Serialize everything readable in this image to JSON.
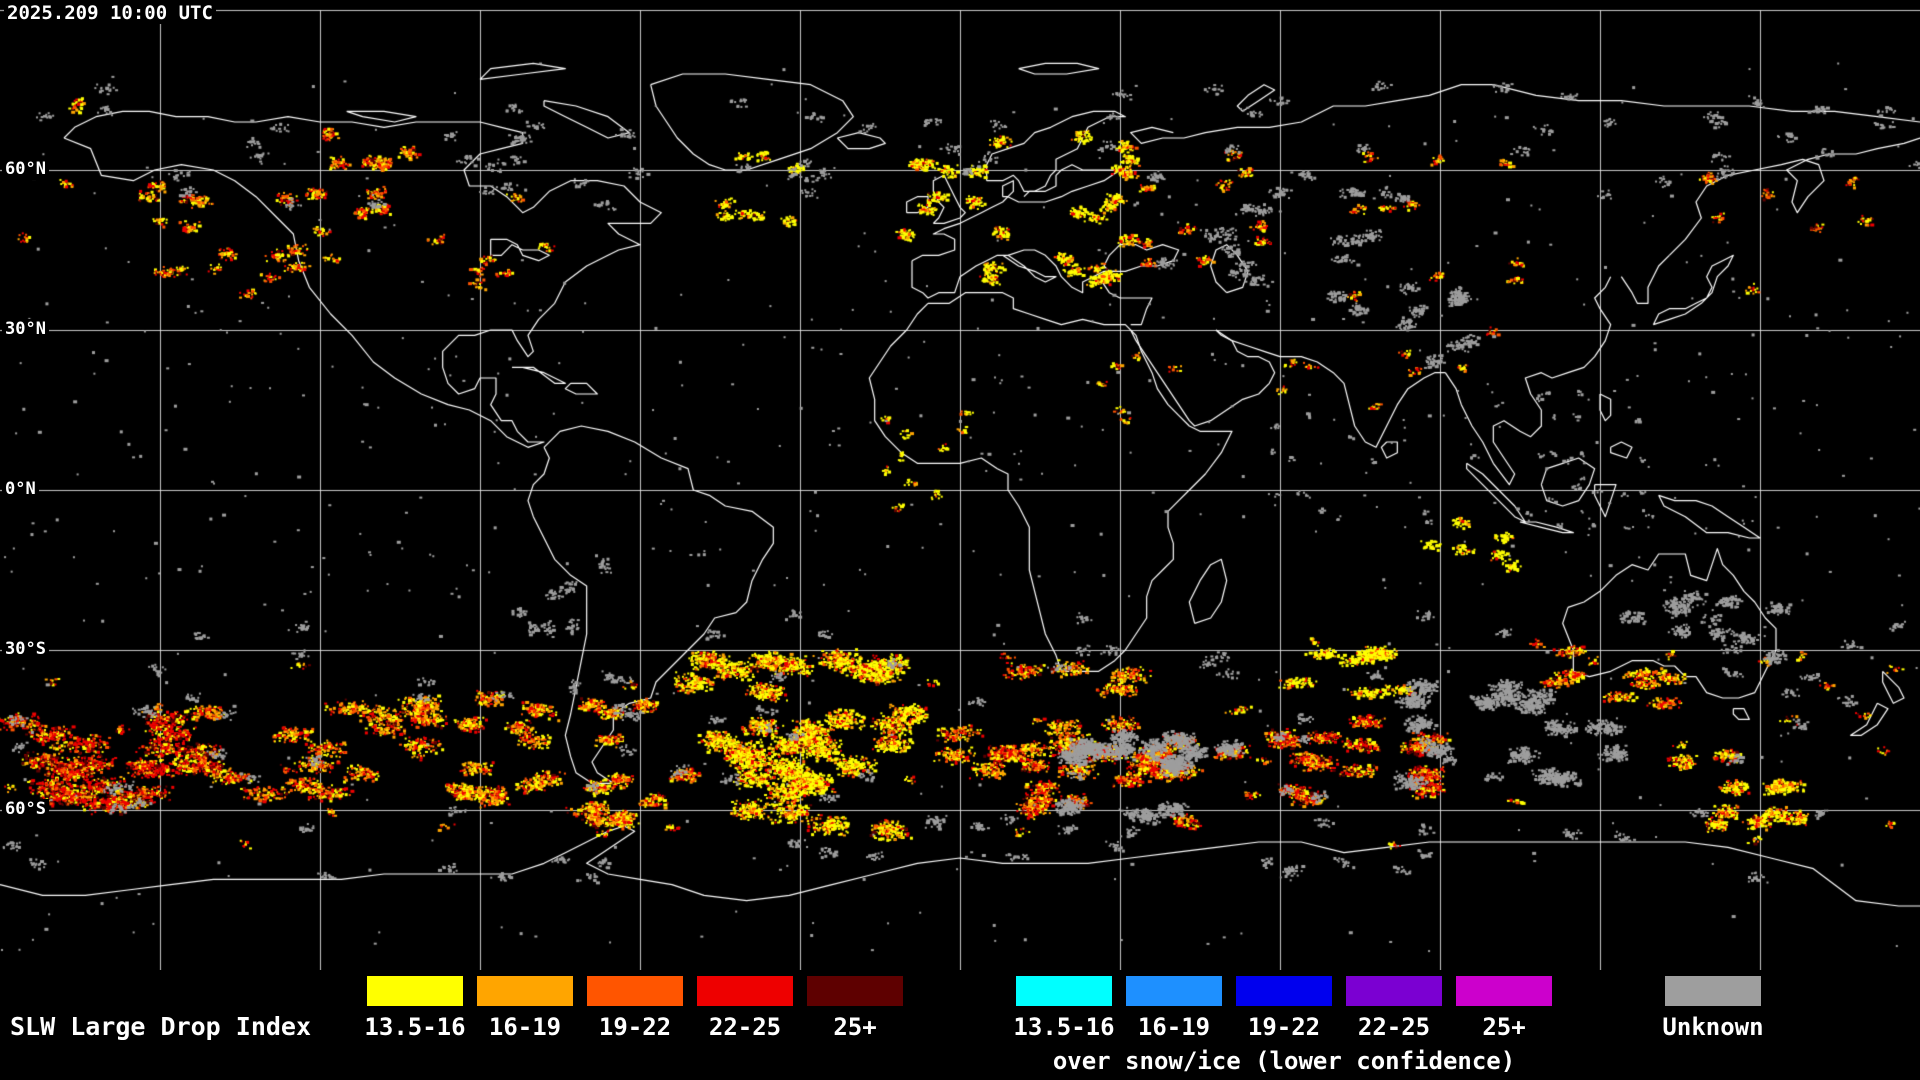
{
  "header": {
    "timestamp": "2025.209 10:00 UTC"
  },
  "map": {
    "latitude_labels": [
      "60°N",
      "30°N",
      "0°N",
      "30°S",
      "60°S"
    ]
  },
  "legend": {
    "title": "SLW Large Drop Index",
    "primary": {
      "classes": [
        {
          "label": "13.5-16",
          "color": "#ffff00"
        },
        {
          "label": "16-19",
          "color": "#ffa500"
        },
        {
          "label": "19-22",
          "color": "#ff5500"
        },
        {
          "label": "22-25",
          "color": "#ee0000"
        },
        {
          "label": "25+",
          "color": "#5e0000"
        }
      ]
    },
    "snow_ice": {
      "caption": "over snow/ice (lower confidence)",
      "classes": [
        {
          "label": "13.5-16",
          "color": "#00ffff"
        },
        {
          "label": "16-19",
          "color": "#1e90ff"
        },
        {
          "label": "19-22",
          "color": "#0000ee"
        },
        {
          "label": "22-25",
          "color": "#7b00d2"
        },
        {
          "label": "25+",
          "color": "#cc00cc"
        }
      ]
    },
    "unknown": {
      "label": "Unknown",
      "color": "#9e9e9e"
    }
  }
}
